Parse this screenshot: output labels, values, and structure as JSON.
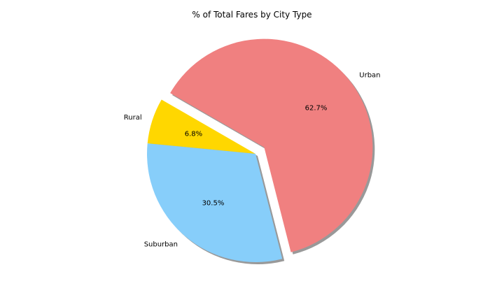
{
  "chart_data": {
    "type": "pie",
    "title": "% of Total Fares by City Type",
    "categories": [
      "Rural",
      "Suburban",
      "Urban"
    ],
    "values": [
      6.8,
      30.5,
      62.7
    ],
    "value_labels": [
      "6.8%",
      "30.5%",
      "62.7%"
    ],
    "colors": [
      "#ffd700",
      "#87cefa",
      "#f08080"
    ],
    "explode": [
      0,
      0,
      0.1
    ],
    "start_angle_deg": 150,
    "shadow": true,
    "legend": "none"
  }
}
